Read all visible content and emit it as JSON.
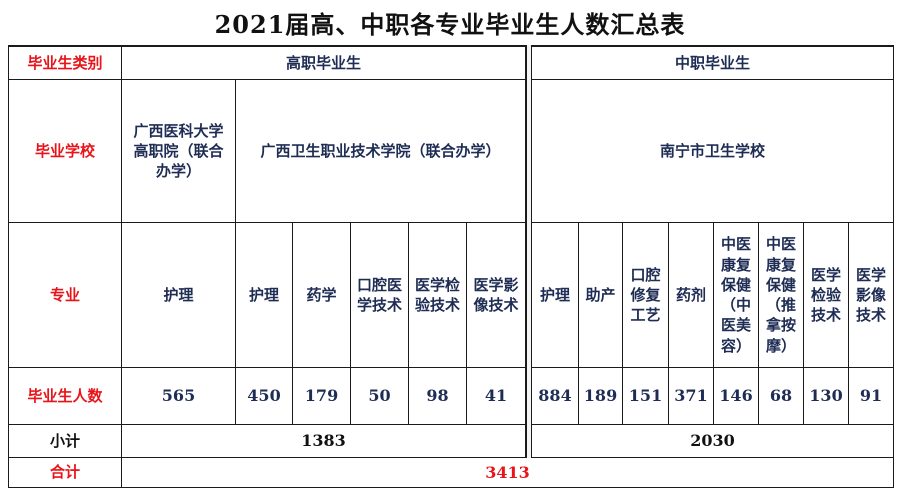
{
  "title": "2021届高、中职各专业毕业生人数汇总表",
  "row_labels": {
    "category": "毕业生类别",
    "school": "毕业学校",
    "major": "专业",
    "count": "毕业生人数",
    "subtotal": "小计",
    "total": "合计"
  },
  "gaozhi": {
    "category": "高职毕业生",
    "school_1": "广西医科大学高职院（联合办学）",
    "school_2": "广西卫生职业技术学院（联合办学）",
    "majors": [
      "护理",
      "护理",
      "药学",
      "口腔医学技术",
      "医学检验技术",
      "医学影像技术"
    ],
    "counts": [
      "565",
      "450",
      "179",
      "50",
      "98",
      "41"
    ],
    "subtotal": "1383"
  },
  "zhongzhi": {
    "category": "中职毕业生",
    "school": "南宁市卫生学校",
    "majors": [
      "护理",
      "助产",
      "口腔修复工艺",
      "药剂",
      "中医康复保健（中医美容）",
      "中医康复保健（推拿按摩）",
      "医学检验技术",
      "医学影像技术"
    ],
    "counts": [
      "884",
      "189",
      "151",
      "371",
      "146",
      "68",
      "130",
      "91"
    ],
    "subtotal": "2030"
  },
  "total": "3413",
  "colors": {
    "label_red": "#e8141a",
    "text_navy": "#1f2d54"
  }
}
